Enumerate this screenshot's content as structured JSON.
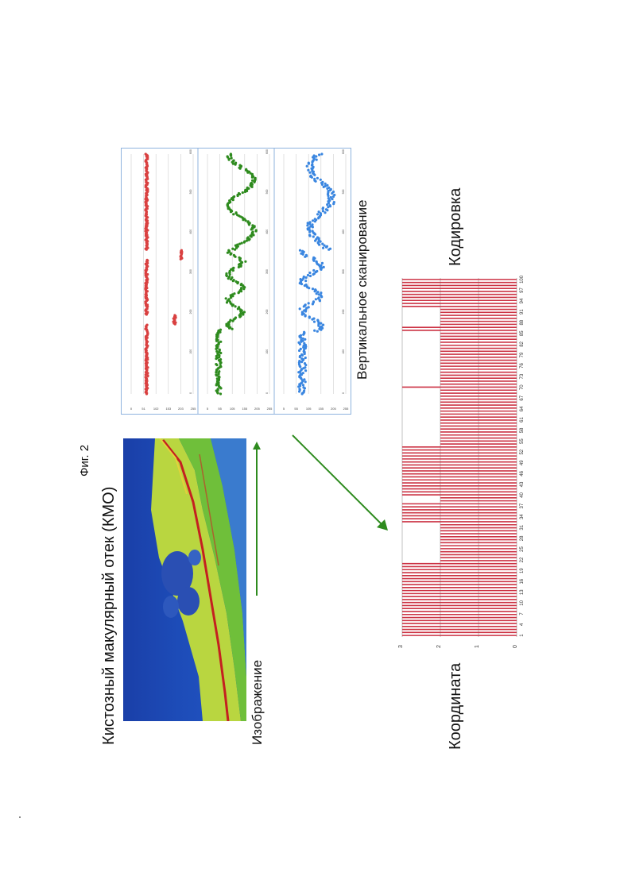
{
  "figure": {
    "fig_label": "Фиг. 2",
    "title": "Кистозный макулярный отек  (КМО)",
    "image_label": "Изображение",
    "vertical_scan_label": "Вертикальное сканирование",
    "coordinate_label": "Координата",
    "coding_label": "Кодировка"
  },
  "chart_data": [
    {
      "type": "scatter",
      "panels": [
        {
          "color": "#d94040",
          "y_ticks": [
            "255",
            "203",
            "153",
            "102",
            "51",
            "0"
          ],
          "x_ticks": [
            "0",
            "100",
            "200",
            "300",
            "400",
            "500",
            "600"
          ]
        },
        {
          "color": "#2e8b1e",
          "y_ticks": [
            "255",
            "205",
            "155",
            "105",
            "55",
            "5"
          ],
          "x_ticks": [
            "0",
            "100",
            "200",
            "300",
            "400",
            "500",
            "600"
          ]
        },
        {
          "color": "#3a86e0",
          "y_ticks": [
            "255",
            "205",
            "155",
            "105",
            "55",
            "5"
          ],
          "x_ticks": [
            "0",
            "100",
            "200",
            "300",
            "400",
            "500",
            "600"
          ]
        }
      ]
    },
    {
      "type": "bar",
      "bar_color": "#cc3344",
      "y_ticks": [
        "0",
        "1",
        "2",
        "3"
      ],
      "ylim": [
        0,
        3
      ],
      "x_ticks": [
        "1",
        "4",
        "7",
        "10",
        "13",
        "16",
        "19",
        "22",
        "25",
        "28",
        "31",
        "34",
        "37",
        "40",
        "43",
        "46",
        "49",
        "52",
        "55",
        "58",
        "61",
        "64",
        "67",
        "70",
        "73",
        "76",
        "79",
        "82",
        "85",
        "88",
        "91",
        "94",
        "97",
        "100"
      ],
      "values": [
        3,
        3,
        3,
        3,
        3,
        3,
        3,
        3,
        3,
        3,
        3,
        3,
        3,
        3,
        3,
        3,
        3,
        3,
        3,
        3,
        3,
        3,
        3,
        3,
        3,
        2,
        2,
        2,
        2,
        2,
        2,
        2,
        2,
        2,
        2,
        2,
        2,
        2,
        3,
        3,
        3,
        3,
        3,
        3,
        3,
        2,
        2,
        3,
        3,
        3,
        3,
        3,
        3,
        3,
        3,
        3,
        3,
        3,
        3,
        3,
        3,
        3,
        3,
        3,
        2,
        2,
        2,
        2,
        2,
        2,
        2,
        2,
        2,
        2,
        2,
        2,
        2,
        2,
        2,
        2,
        2,
        2,
        2,
        3,
        2,
        2,
        2,
        2,
        2,
        2,
        2,
        2,
        2,
        2,
        2,
        2,
        2,
        2,
        2,
        2,
        2,
        2,
        3,
        3,
        2,
        2,
        2,
        2,
        2,
        2,
        3,
        3,
        3,
        3,
        3,
        3,
        3,
        3,
        3,
        3
      ]
    }
  ]
}
